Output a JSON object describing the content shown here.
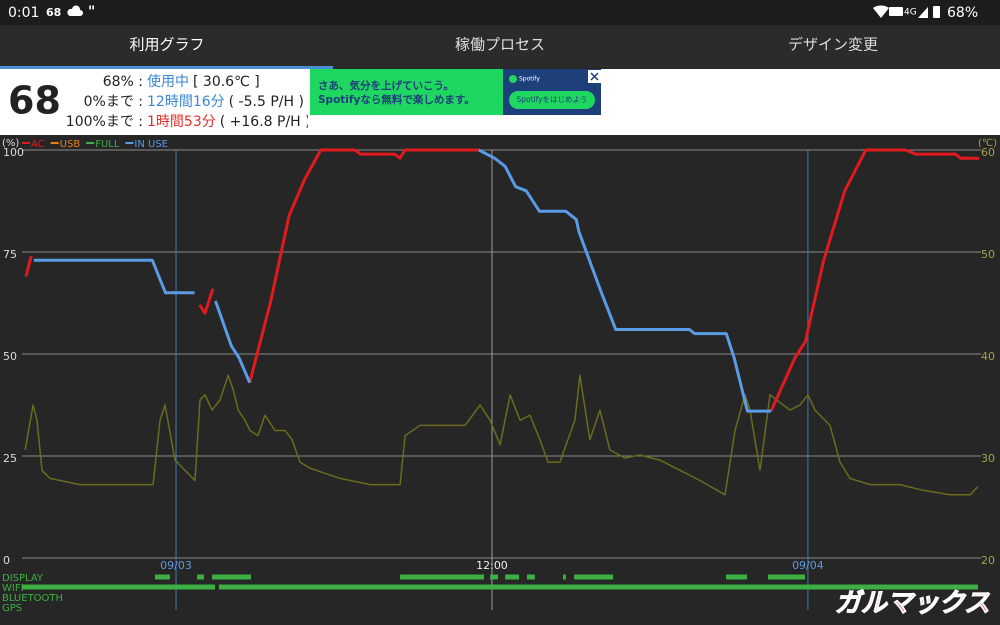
{
  "status_bar": {
    "time": "0:01",
    "notification": "68",
    "battery": "68%"
  },
  "tabs": [
    "利用グラフ",
    "稼働プロセス",
    "デザイン変更"
  ],
  "summary": {
    "level": "68",
    "percent_label": "68% :",
    "state": "使用中",
    "temperature": "[ 30.6℃ ]",
    "empty_label": "0%まで :",
    "empty_time": "12時間16分",
    "empty_rate": "( -5.5 P/H )",
    "full_label": "100%まで :",
    "full_time": "1時間53分",
    "full_rate": "( +16.8 P/H )"
  },
  "ad": {
    "line1": "さあ、気分を上げていこう。",
    "line2": "Spotifyなら無料で楽しめます。",
    "brand": "Spotify",
    "button": "Spotifyをはじめよう"
  },
  "watermark": "ガルマックス",
  "chart_data": {
    "type": "line",
    "y_unit": "(%)",
    "y2_unit": "(℃)",
    "xlim": [
      -5.85,
      30.46
    ],
    "xticks": [
      {
        "value": 0,
        "label": "09/03"
      },
      {
        "value": 12,
        "label": "12:00"
      },
      {
        "value": 24,
        "label": "09/04"
      }
    ],
    "xgrid_colors": [
      "#3f78b5",
      "#9a9a9a",
      "#3f78b5"
    ],
    "ylim": [
      0,
      100
    ],
    "yticks": [
      0,
      25,
      50,
      75,
      100
    ],
    "y2lim": [
      20,
      60
    ],
    "y2ticks": [
      20,
      30,
      40,
      50,
      60
    ],
    "grid": true,
    "series": [
      {
        "name": "AC",
        "color": "#e01a1e",
        "x": [
          -5.7,
          -5.5,
          null,
          0.9,
          1.1,
          1.4,
          null,
          2.8,
          3.6,
          4.3,
          4.9,
          5.5,
          6.8,
          7.0,
          8.3,
          8.5,
          8.7,
          11.5,
          null,
          22.6,
          23.5,
          23.9,
          24.6,
          25.4,
          26.2,
          27.7,
          28.1,
          29.6,
          29.8,
          30.5
        ],
        "values": [
          69,
          74,
          null,
          62,
          60,
          66,
          null,
          43,
          63,
          84,
          93,
          100,
          100,
          99,
          99,
          98,
          100,
          100,
          null,
          36,
          49,
          53,
          73,
          90,
          100,
          100,
          99,
          99,
          98,
          98
        ]
      },
      {
        "name": "USB",
        "color": "#e8801a",
        "x": [],
        "values": []
      },
      {
        "name": "FULL",
        "color": "#3cb043",
        "x": [],
        "values": []
      },
      {
        "name": "IN USE",
        "color": "#5a9be6",
        "x": [
          -5.4,
          -0.9,
          -0.4,
          0.7,
          null,
          1.5,
          2.1,
          2.4,
          2.8,
          null,
          11.5,
          12.1,
          12.5,
          12.9,
          13.3,
          13.8,
          14.8,
          15.2,
          15.3,
          16.1,
          16.7,
          19.5,
          19.7,
          20.9,
          21.2,
          21.7,
          22.6
        ],
        "values": [
          73,
          73,
          65,
          65,
          null,
          63,
          52,
          49,
          43,
          null,
          100,
          98,
          96,
          91,
          90,
          85,
          85,
          83,
          80,
          66,
          56,
          56,
          55,
          55,
          49,
          36,
          36
        ]
      },
      {
        "color": "#6b6b1e",
        "axis": "y2",
        "x": [
          -5.73,
          -5.43,
          -5.28,
          -5.09,
          -4.79,
          -3.65,
          -0.87,
          -0.61,
          -0.42,
          -0.04,
          0.34,
          0.72,
          0.91,
          1.1,
          1.37,
          1.67,
          1.98,
          2.17,
          2.36,
          2.62,
          2.81,
          3.11,
          3.38,
          3.76,
          4.14,
          4.41,
          4.71,
          5.09,
          6.23,
          7.37,
          8.51,
          8.7,
          9.27,
          10.98,
          11.55,
          11.93,
          12.31,
          12.69,
          13.07,
          13.44,
          13.82,
          14.13,
          14.58,
          15.15,
          15.34,
          15.72,
          16.1,
          16.48,
          17.05,
          17.62,
          18.38,
          19.14,
          19.9,
          20.85,
          21.23,
          21.61,
          21.8,
          22.18,
          22.56,
          23.32,
          23.7,
          24.0,
          24.27,
          24.84,
          25.22,
          25.6,
          26.36,
          27.5,
          28.26,
          29.4,
          30.16,
          30.46
        ],
        "values": [
          30.6,
          35.0,
          33.5,
          28.6,
          27.8,
          27.2,
          27.2,
          33.5,
          35.0,
          29.6,
          28.6,
          27.6,
          35.5,
          36.0,
          34.5,
          35.5,
          37.9,
          36.5,
          34.5,
          33.5,
          32.5,
          32.0,
          34.0,
          32.5,
          32.5,
          31.6,
          29.4,
          28.8,
          27.8,
          27.2,
          27.2,
          32.0,
          33.0,
          33.0,
          35.0,
          33.5,
          31.1,
          36.0,
          33.5,
          34.0,
          31.6,
          29.4,
          29.4,
          33.5,
          37.9,
          31.6,
          34.5,
          30.6,
          29.8,
          30.1,
          29.6,
          28.6,
          27.6,
          26.2,
          32.5,
          36.0,
          34.5,
          28.6,
          36.0,
          34.5,
          35.0,
          36.0,
          34.5,
          33.0,
          29.4,
          27.8,
          27.2,
          27.2,
          26.7,
          26.2,
          26.2,
          27.0
        ]
      }
    ],
    "activity": [
      {
        "name": "DISPLAY",
        "color": "#3cb043",
        "segments": [
          [
            -0.8,
            -0.23
          ],
          [
            0.8,
            1.06
          ],
          [
            1.37,
            2.85
          ],
          [
            8.51,
            11.7
          ],
          [
            11.93,
            12.23
          ],
          [
            12.5,
            13.03
          ],
          [
            13.33,
            13.63
          ],
          [
            14.7,
            14.81
          ],
          [
            15.12,
            16.6
          ],
          [
            20.89,
            21.69
          ],
          [
            22.48,
            23.89
          ]
        ]
      },
      {
        "name": "WIFI",
        "color": "#3cb043",
        "segments": [
          [
            -5.85,
            1.48
          ],
          [
            1.63,
            30.46
          ]
        ]
      },
      {
        "name": "BLUETOOTH",
        "color": "#3cb043",
        "segments": []
      },
      {
        "name": "GPS",
        "color": "#3cb043",
        "segments": []
      }
    ]
  }
}
